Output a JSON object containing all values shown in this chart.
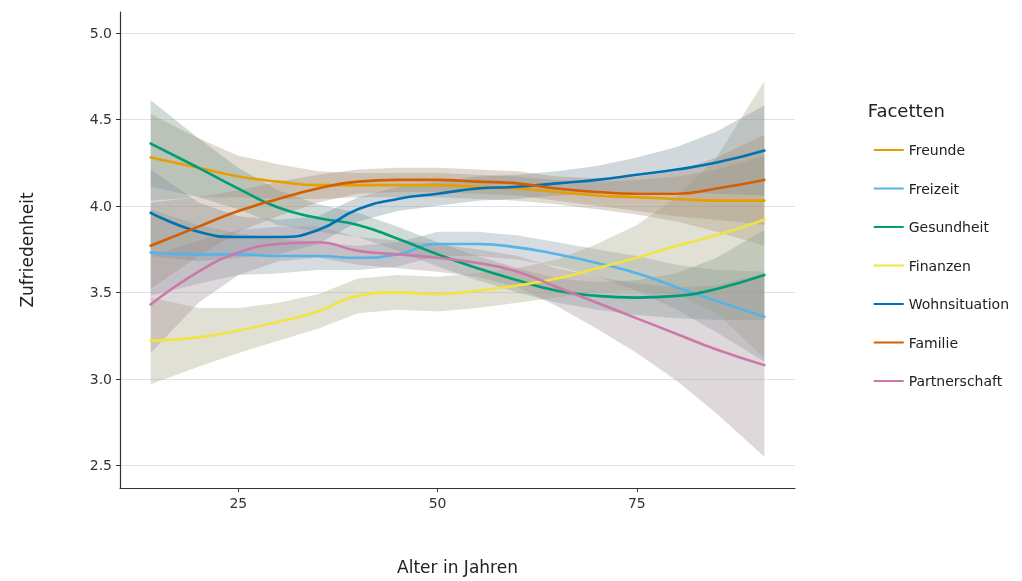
{
  "chart_data": {
    "type": "line",
    "xlabel": "Alter in Jahren",
    "ylabel": "Zufriedenheit",
    "legend_title": "Facetten",
    "legend": "right",
    "grid": "y",
    "marker": "none",
    "line_style": "solid",
    "xlim": [
      10.15,
      94.85
    ],
    "xticks": [
      25,
      50,
      75
    ],
    "ylim": [
      2.37,
      5.12
    ],
    "yticks": [
      {
        "value": 2.5,
        "label": "2.5"
      },
      {
        "value": 3,
        "label": "3.0"
      },
      {
        "value": 3.5,
        "label": "3.5"
      },
      {
        "value": 4,
        "label": "4.0"
      },
      {
        "value": 4.5,
        "label": "4.5"
      },
      {
        "value": 5,
        "label": "5.0"
      }
    ],
    "x": [
      14,
      20,
      25,
      30,
      35,
      40,
      45,
      50,
      55,
      60,
      65,
      70,
      75,
      80,
      85,
      91
    ],
    "series": [
      {
        "name": "Freunde",
        "color": "#e69f00",
        "values": [
          4.28,
          4.22,
          4.17,
          4.14,
          4.12,
          4.12,
          4.12,
          4.12,
          4.11,
          4.1,
          4.08,
          4.06,
          4.05,
          4.04,
          4.03,
          4.03
        ],
        "lower": [
          4.03,
          4.05,
          4.05,
          4.04,
          4.04,
          4.05,
          4.05,
          4.05,
          4.04,
          4.03,
          4.01,
          3.98,
          3.95,
          3.91,
          3.85,
          3.77
        ],
        "upper": [
          4.53,
          4.39,
          4.29,
          4.24,
          4.2,
          4.19,
          4.19,
          4.19,
          4.18,
          4.17,
          4.15,
          4.14,
          4.15,
          4.17,
          4.21,
          4.29
        ]
      },
      {
        "name": "Freizeit",
        "color": "#56b4e9",
        "values": [
          3.73,
          3.72,
          3.72,
          3.71,
          3.71,
          3.7,
          3.72,
          3.78,
          3.78,
          3.76,
          3.72,
          3.67,
          3.61,
          3.53,
          3.45,
          3.36
        ],
        "lower": [
          3.48,
          3.55,
          3.6,
          3.61,
          3.63,
          3.63,
          3.65,
          3.71,
          3.71,
          3.69,
          3.65,
          3.59,
          3.51,
          3.4,
          3.27,
          3.1
        ],
        "upper": [
          3.98,
          3.89,
          3.84,
          3.81,
          3.79,
          3.77,
          3.79,
          3.85,
          3.85,
          3.83,
          3.79,
          3.75,
          3.71,
          3.66,
          3.63,
          3.62
        ]
      },
      {
        "name": "Gesundheit",
        "color": "#009e73",
        "values": [
          4.36,
          4.22,
          4.1,
          3.99,
          3.93,
          3.89,
          3.81,
          3.72,
          3.64,
          3.57,
          3.51,
          3.48,
          3.47,
          3.48,
          3.52,
          3.6
        ],
        "lower": [
          4.11,
          4.05,
          3.98,
          3.89,
          3.85,
          3.82,
          3.74,
          3.65,
          3.57,
          3.5,
          3.44,
          3.4,
          3.37,
          3.35,
          3.34,
          3.34
        ],
        "upper": [
          4.61,
          4.39,
          4.22,
          4.09,
          4.01,
          3.96,
          3.88,
          3.79,
          3.71,
          3.64,
          3.58,
          3.56,
          3.57,
          3.61,
          3.7,
          3.86
        ]
      },
      {
        "name": "Finanzen",
        "color": "#f0e442",
        "values": [
          3.22,
          3.24,
          3.28,
          3.33,
          3.39,
          3.48,
          3.5,
          3.49,
          3.51,
          3.54,
          3.58,
          3.64,
          3.7,
          3.77,
          3.83,
          3.92
        ],
        "lower": [
          2.97,
          3.07,
          3.15,
          3.22,
          3.29,
          3.38,
          3.4,
          3.39,
          3.41,
          3.44,
          3.47,
          3.5,
          3.51,
          3.49,
          3.38,
          3.12
        ],
        "upper": [
          3.47,
          3.41,
          3.41,
          3.44,
          3.49,
          3.58,
          3.6,
          3.59,
          3.61,
          3.64,
          3.69,
          3.78,
          3.89,
          4.05,
          4.28,
          4.72
        ]
      },
      {
        "name": "Wohnsituation",
        "color": "#0072b2",
        "values": [
          3.96,
          3.85,
          3.82,
          3.82,
          3.86,
          3.98,
          4.04,
          4.07,
          4.1,
          4.11,
          4.13,
          4.15,
          4.18,
          4.21,
          4.25,
          4.32
        ],
        "lower": [
          3.71,
          3.68,
          3.7,
          3.72,
          3.78,
          3.91,
          3.97,
          4.0,
          4.03,
          4.04,
          4.06,
          4.07,
          4.08,
          4.08,
          4.07,
          4.06
        ],
        "upper": [
          4.21,
          4.02,
          3.94,
          3.92,
          3.94,
          4.05,
          4.11,
          4.14,
          4.17,
          4.18,
          4.2,
          4.23,
          4.28,
          4.34,
          4.43,
          4.58
        ]
      },
      {
        "name": "Familie",
        "color": "#d55e00",
        "values": [
          3.77,
          3.88,
          3.97,
          4.04,
          4.1,
          4.14,
          4.15,
          4.15,
          4.14,
          4.13,
          4.1,
          4.08,
          4.07,
          4.07,
          4.1,
          4.15
        ],
        "lower": [
          3.52,
          3.71,
          3.85,
          3.94,
          4.02,
          4.07,
          4.08,
          4.08,
          4.07,
          4.06,
          4.03,
          4.0,
          3.97,
          3.94,
          3.92,
          3.89
        ],
        "upper": [
          4.02,
          4.05,
          4.09,
          4.14,
          4.18,
          4.21,
          4.22,
          4.22,
          4.21,
          4.2,
          4.17,
          4.16,
          4.17,
          4.2,
          4.28,
          4.41
        ]
      },
      {
        "name": "Partnerschaft",
        "color": "#cc79a7",
        "values": [
          3.43,
          3.62,
          3.73,
          3.78,
          3.79,
          3.74,
          3.72,
          3.7,
          3.67,
          3.62,
          3.53,
          3.44,
          3.35,
          3.26,
          3.17,
          3.08
        ],
        "lower": [
          3.15,
          3.44,
          3.6,
          3.68,
          3.7,
          3.66,
          3.64,
          3.62,
          3.59,
          3.53,
          3.42,
          3.29,
          3.15,
          2.99,
          2.8,
          2.55
        ],
        "upper": [
          3.71,
          3.8,
          3.86,
          3.88,
          3.88,
          3.82,
          3.8,
          3.78,
          3.75,
          3.71,
          3.64,
          3.59,
          3.55,
          3.53,
          3.54,
          3.61
        ]
      }
    ]
  }
}
